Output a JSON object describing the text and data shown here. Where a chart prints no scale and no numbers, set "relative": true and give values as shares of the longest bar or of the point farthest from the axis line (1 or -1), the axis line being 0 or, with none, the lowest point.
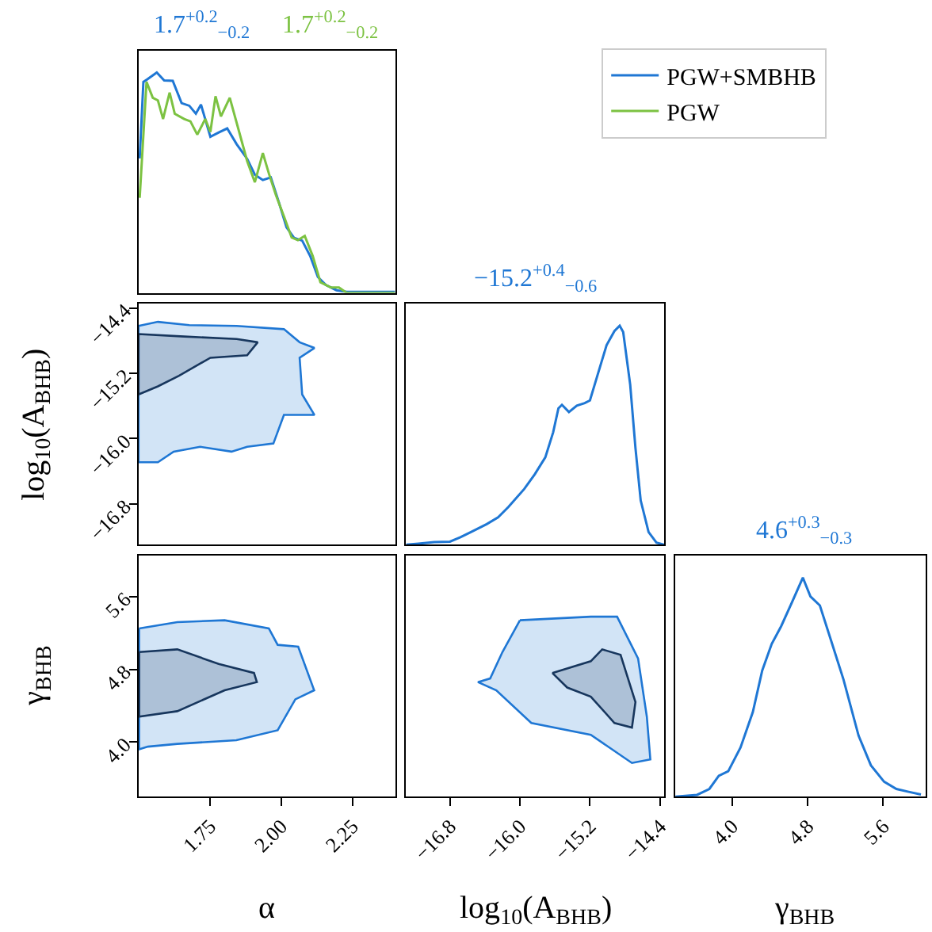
{
  "chart_data": [
    {
      "type": "line",
      "relative": true,
      "xlim": [
        1.5,
        2.4
      ],
      "tick_labels": false,
      "legend": "right",
      "annotations": [
        "1.7$^{+0.2}$$_{−0.2}$",
        "1.7$^{+0.2}$$_{−0.2}$"
      ],
      "series": [
        {
          "name": "PGW+SMBHB",
          "color": "#1f77d4",
          "x": [
            1.504,
            1.517,
            1.531,
            1.564,
            1.59,
            1.62,
            1.651,
            1.678,
            1.701,
            1.719,
            1.752,
            1.78,
            1.811,
            1.844,
            1.881,
            1.908,
            1.936,
            1.964,
            1.991,
            2.019,
            2.046,
            2.074,
            2.102,
            2.129,
            2.157,
            2.194,
            2.23,
            2.4
          ],
          "values": [
            0.61,
            0.957,
            0.969,
            1.0,
            0.964,
            0.962,
            0.861,
            0.849,
            0.813,
            0.854,
            0.708,
            0.727,
            0.746,
            0.675,
            0.608,
            0.536,
            0.512,
            0.524,
            0.416,
            0.297,
            0.249,
            0.237,
            0.167,
            0.072,
            0.036,
            0.012,
            0.005,
            0.005
          ]
        },
        {
          "name": "PGW",
          "color": "#7cc242",
          "x": [
            1.504,
            1.528,
            1.55,
            1.568,
            1.586,
            1.609,
            1.627,
            1.66,
            1.682,
            1.706,
            1.734,
            1.752,
            1.77,
            1.789,
            1.82,
            1.853,
            1.881,
            1.908,
            1.936,
            1.958,
            1.982,
            2.01,
            2.037,
            2.059,
            2.083,
            2.111,
            2.138,
            2.175,
            2.203,
            2.23,
            2.4
          ],
          "values": [
            0.431,
            0.957,
            0.885,
            0.873,
            0.789,
            0.909,
            0.813,
            0.789,
            0.778,
            0.718,
            0.789,
            0.73,
            0.892,
            0.801,
            0.885,
            0.73,
            0.598,
            0.502,
            0.634,
            0.538,
            0.443,
            0.347,
            0.251,
            0.239,
            0.258,
            0.167,
            0.048,
            0.024,
            0.024,
            0,
            0
          ]
        }
      ]
    },
    {
      "type": "area",
      "xlim": [
        1.5,
        2.4
      ],
      "ylim": [
        -17.3,
        -14.35
      ],
      "yticks": [
        {
          "value": -16.8,
          "label": "−16.8"
        },
        {
          "value": -16.0,
          "label": "−16.0"
        },
        {
          "value": -15.2,
          "label": "−15.2"
        },
        {
          "value": -14.4,
          "label": "−14.4"
        }
      ],
      "tick_labels": "y",
      "ylabel": "log$_{10}$(A$_{BHB}$)",
      "series": [
        {
          "color": "#1f77d4",
          "x": [
            1.5,
            1.568,
            1.678,
            1.844,
            2.01,
            2.065,
            2.117,
            2.065,
            2.074,
            2.117,
            2.01,
            1.973,
            1.881,
            1.826,
            1.716,
            1.623,
            1.568,
            1.5,
            1.5
          ],
          "values": [
            -14.62,
            -14.57,
            -14.61,
            -14.62,
            -14.66,
            -14.82,
            -14.89,
            -15.01,
            -15.46,
            -15.71,
            -15.71,
            -16.06,
            -16.1,
            -16.16,
            -16.1,
            -16.16,
            -16.29,
            -16.29,
            -14.62
          ]
        },
        {
          "color": "#17365d",
          "x": [
            1.5,
            1.66,
            1.844,
            1.918,
            1.881,
            1.752,
            1.642,
            1.568,
            1.5,
            1.5
          ],
          "values": [
            -14.72,
            -14.75,
            -14.78,
            -14.82,
            -14.98,
            -15.01,
            -15.23,
            -15.36,
            -15.46,
            -14.72
          ]
        }
      ]
    },
    {
      "type": "line",
      "relative": true,
      "xlim": [
        -17.3,
        -14.35
      ],
      "tick_labels": false,
      "annotations": [
        "−15.2$^{+0.4}$$_{−0.6}$"
      ],
      "series": [
        {
          "color": "#1f77d4",
          "x": [
            -17.3,
            -17.16,
            -16.98,
            -16.8,
            -16.68,
            -16.56,
            -16.38,
            -16.25,
            -16.13,
            -15.95,
            -15.83,
            -15.71,
            -15.62,
            -15.56,
            -15.52,
            -15.44,
            -15.35,
            -15.26,
            -15.2,
            -15.11,
            -15.01,
            -14.92,
            -14.86,
            -14.82,
            -14.74,
            -14.68,
            -14.62,
            -14.53,
            -14.44,
            -14.35
          ],
          "values": [
            0,
            0.005,
            0.012,
            0.014,
            0.034,
            0.058,
            0.094,
            0.125,
            0.173,
            0.255,
            0.322,
            0.399,
            0.514,
            0.623,
            0.639,
            0.606,
            0.635,
            0.647,
            0.659,
            0.779,
            0.911,
            0.976,
            1.0,
            0.971,
            0.731,
            0.442,
            0.202,
            0.058,
            0.01,
            0
          ]
        }
      ]
    },
    {
      "type": "area",
      "xlim": [
        1.5,
        2.4
      ],
      "xticks": [
        1.75,
        {
          "value": 2.0,
          "label": "2.00"
        },
        2.25
      ],
      "ylim": [
        3.4,
        6.05
      ],
      "yticks": [
        {
          "value": 4.0,
          "label": "4.0"
        },
        4.8,
        5.6
      ],
      "xlabel": "α",
      "ylabel": "γ$_{BHB}$",
      "series": [
        {
          "color": "#1f77d4",
          "x": [
            1.502,
            1.636,
            1.802,
            1.957,
            1.988,
            2.06,
            2.116,
            2.05,
            1.988,
            1.843,
            1.636,
            1.533,
            1.502,
            1.502
          ],
          "values": [
            5.25,
            5.32,
            5.34,
            5.25,
            5.07,
            5.05,
            4.57,
            4.47,
            4.13,
            4.02,
            3.98,
            3.95,
            3.92,
            5.25
          ]
        },
        {
          "color": "#17365d",
          "x": [
            1.502,
            1.636,
            1.781,
            1.905,
            1.915,
            1.802,
            1.636,
            1.502,
            1.502
          ],
          "values": [
            4.99,
            5.02,
            4.86,
            4.76,
            4.66,
            4.57,
            4.34,
            4.28,
            4.99
          ]
        }
      ]
    },
    {
      "type": "area",
      "xlim": [
        -17.3,
        -14.35
      ],
      "xticks": [
        {
          "value": -16.8,
          "label": "−16.8"
        },
        {
          "value": -16.0,
          "label": "−16.0"
        },
        {
          "value": -15.2,
          "label": "−15.2"
        },
        {
          "value": -14.4,
          "label": "−14.4"
        }
      ],
      "ylim": [
        3.4,
        6.05
      ],
      "tick_labels": "x",
      "xlabel": "log$_{10}$(A$_{BHB}$)",
      "series": [
        {
          "color": "#1f77d4",
          "x": [
            -16.0,
            -15.19,
            -14.89,
            -14.65,
            -14.55,
            -14.51,
            -14.72,
            -15.19,
            -15.87,
            -16.27,
            -16.48,
            -16.34,
            -16.2,
            -16.0
          ],
          "values": [
            5.34,
            5.38,
            5.38,
            4.92,
            4.28,
            3.81,
            3.77,
            4.08,
            4.21,
            4.57,
            4.66,
            4.7,
            4.99,
            5.34
          ]
        },
        {
          "color": "#17365d",
          "x": [
            -15.63,
            -15.19,
            -15.06,
            -14.85,
            -14.68,
            -14.72,
            -14.92,
            -15.19,
            -15.46,
            -15.63
          ],
          "values": [
            4.76,
            4.89,
            5.02,
            4.96,
            4.44,
            4.16,
            4.21,
            4.5,
            4.6,
            4.76
          ]
        }
      ]
    },
    {
      "type": "line",
      "relative": true,
      "xlim": [
        3.4,
        6.05
      ],
      "xticks": [
        {
          "value": 4.0,
          "label": "4.0"
        },
        4.8,
        5.6
      ],
      "tick_labels": "x",
      "xlabel": "γ$_{BHB}$",
      "annotations": [
        "4.6$^{+0.3}$$_{−0.3}$"
      ],
      "series": [
        {
          "color": "#1f77d4",
          "x": [
            3.4,
            3.63,
            3.76,
            3.86,
            3.96,
            4.09,
            4.22,
            4.32,
            4.42,
            4.52,
            4.62,
            4.75,
            4.83,
            4.93,
            5.05,
            5.18,
            5.34,
            5.47,
            5.61,
            5.74,
            5.87,
            6.0
          ],
          "values": [
            0,
            0.008,
            0.035,
            0.095,
            0.116,
            0.224,
            0.386,
            0.576,
            0.697,
            0.778,
            0.873,
            1.0,
            0.914,
            0.873,
            0.711,
            0.535,
            0.278,
            0.143,
            0.068,
            0.035,
            0.022,
            0.01
          ]
        }
      ]
    }
  ]
}
